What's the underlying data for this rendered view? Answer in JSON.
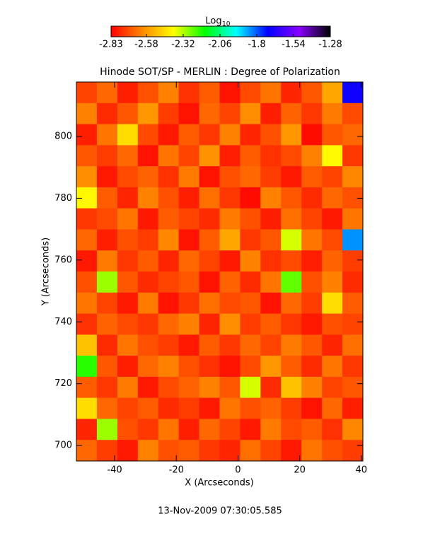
{
  "chart_data": {
    "type": "heatmap",
    "title": "Hinode SOT/SP - MERLIN : Degree of Polarization",
    "x_label": "X (Arcseconds)",
    "y_label": "Y (Arcseconds)",
    "footer": "13-Nov-2009 07:30:05.585",
    "colorbar_label": "Log",
    "colorbar_label_subscript": "10",
    "colorbar_ticks": [
      -2.83,
      -2.58,
      -2.32,
      -2.06,
      -1.8,
      -1.54,
      -1.28
    ],
    "zlim": [
      -2.83,
      -1.28
    ],
    "colormap": [
      "#ff0000",
      "#ff8800",
      "#ffff00",
      "#00ff00",
      "#00ffff",
      "#0000ff",
      "#8800ff",
      "#000000"
    ],
    "xlim": [
      -52.4,
      40.5
    ],
    "ylim": [
      695,
      817.6
    ],
    "xticks": [
      -40,
      -20,
      0,
      20,
      40
    ],
    "yticks": [
      700,
      720,
      740,
      760,
      780,
      800
    ],
    "z": [
      [
        -2.72,
        -2.66,
        -2.78,
        -2.7,
        -2.62,
        -2.75,
        -2.68,
        -2.8,
        -2.71,
        -2.64,
        -2.77,
        -2.69,
        -2.55,
        -1.7
      ],
      [
        -2.62,
        -2.76,
        -2.69,
        -2.58,
        -2.73,
        -2.8,
        -2.66,
        -2.72,
        -2.6,
        -2.78,
        -2.67,
        -2.74,
        -2.63,
        -2.71
      ],
      [
        -2.78,
        -2.64,
        -2.45,
        -2.71,
        -2.79,
        -2.68,
        -2.74,
        -2.62,
        -2.77,
        -2.7,
        -2.58,
        -2.81,
        -2.69,
        -2.66
      ],
      [
        -2.69,
        -2.73,
        -2.66,
        -2.8,
        -2.64,
        -2.72,
        -2.59,
        -2.78,
        -2.68,
        -2.75,
        -2.71,
        -2.62,
        -2.4,
        -2.74
      ],
      [
        -2.6,
        -2.79,
        -2.71,
        -2.67,
        -2.75,
        -2.63,
        -2.8,
        -2.7,
        -2.66,
        -2.73,
        -2.79,
        -2.68,
        -2.72,
        -2.61
      ],
      [
        -2.4,
        -2.68,
        -2.77,
        -2.62,
        -2.7,
        -2.78,
        -2.65,
        -2.74,
        -2.81,
        -2.62,
        -2.69,
        -2.76,
        -2.66,
        -2.7
      ],
      [
        -2.74,
        -2.71,
        -2.64,
        -2.79,
        -2.68,
        -2.72,
        -2.76,
        -2.63,
        -2.7,
        -2.78,
        -2.65,
        -2.72,
        -2.79,
        -2.64
      ],
      [
        -2.66,
        -2.78,
        -2.7,
        -2.73,
        -2.61,
        -2.8,
        -2.68,
        -2.55,
        -2.74,
        -2.69,
        -2.35,
        -2.64,
        -2.71,
        -1.85
      ],
      [
        -2.79,
        -2.63,
        -2.74,
        -2.68,
        -2.77,
        -2.66,
        -2.72,
        -2.79,
        -2.62,
        -2.75,
        -2.71,
        -2.78,
        -2.67,
        -2.73
      ],
      [
        -2.7,
        -2.3,
        -2.69,
        -2.76,
        -2.72,
        -2.69,
        -2.8,
        -2.67,
        -2.76,
        -2.64,
        -2.25,
        -2.7,
        -2.62,
        -2.76
      ],
      [
        -2.64,
        -2.72,
        -2.79,
        -2.63,
        -2.8,
        -2.74,
        -2.65,
        -2.71,
        -2.69,
        -2.8,
        -2.66,
        -2.73,
        -2.45,
        -2.68
      ],
      [
        -2.75,
        -2.67,
        -2.71,
        -2.74,
        -2.66,
        -2.62,
        -2.77,
        -2.6,
        -2.73,
        -2.68,
        -2.74,
        -2.79,
        -2.7,
        -2.72
      ],
      [
        -2.5,
        -2.76,
        -2.64,
        -2.7,
        -2.73,
        -2.79,
        -2.68,
        -2.74,
        -2.66,
        -2.72,
        -2.63,
        -2.69,
        -2.77,
        -2.65
      ],
      [
        -2.2,
        -2.69,
        -2.78,
        -2.66,
        -2.62,
        -2.7,
        -2.75,
        -2.8,
        -2.71,
        -2.58,
        -2.68,
        -2.76,
        -2.64,
        -2.74
      ],
      [
        -2.68,
        -2.74,
        -2.63,
        -2.79,
        -2.71,
        -2.67,
        -2.62,
        -2.69,
        -2.35,
        -2.76,
        -2.5,
        -2.62,
        -2.72,
        -2.69
      ],
      [
        -2.45,
        -2.66,
        -2.72,
        -2.68,
        -2.76,
        -2.73,
        -2.79,
        -2.64,
        -2.7,
        -2.67,
        -2.73,
        -2.8,
        -2.66,
        -2.78
      ],
      [
        -2.77,
        -2.3,
        -2.7,
        -2.74,
        -2.64,
        -2.78,
        -2.66,
        -2.72,
        -2.79,
        -2.63,
        -2.71,
        -2.68,
        -2.75,
        -2.61
      ],
      [
        -2.66,
        -2.73,
        -2.79,
        -2.62,
        -2.7,
        -2.68,
        -2.74,
        -2.77,
        -2.65,
        -2.72,
        -2.79,
        -2.64,
        -2.7,
        -2.73
      ]
    ]
  }
}
